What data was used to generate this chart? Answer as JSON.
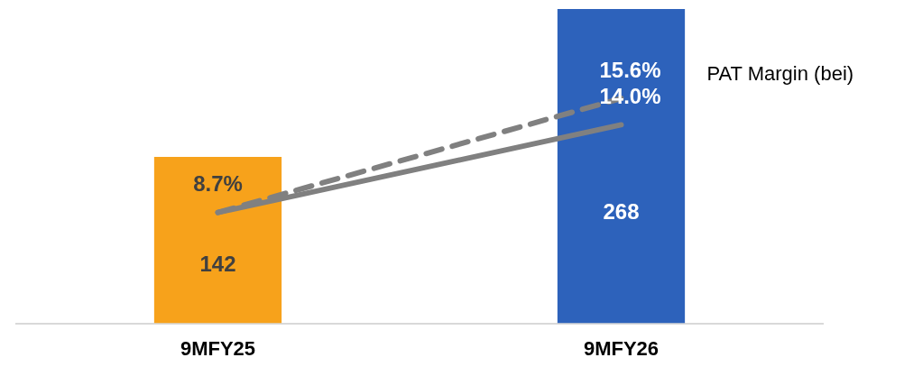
{
  "chart_data": {
    "type": "bar",
    "categories": [
      "9MFY25",
      "9MFY26"
    ],
    "ylim": [
      0,
      268
    ],
    "y2lim": [
      2,
      21
    ],
    "data_labels": true,
    "legend": false,
    "grid": false,
    "series": [
      {
        "colors": [
          "#f7a21b",
          "#2d62bb"
        ],
        "values": [
          142,
          268
        ]
      },
      {
        "type": "line",
        "axis": "y2",
        "color": "#808080",
        "line_style": "dashed",
        "name": "PAT Margin (bei)",
        "values": [
          8.7,
          15.6
        ],
        "value_labels": [
          null,
          "15.6%"
        ]
      },
      {
        "type": "line",
        "axis": "y2",
        "color": "#808080",
        "line_style": "solid",
        "values": [
          8.7,
          14.0
        ],
        "value_labels": [
          "8.7%",
          "14.0%"
        ]
      }
    ]
  }
}
